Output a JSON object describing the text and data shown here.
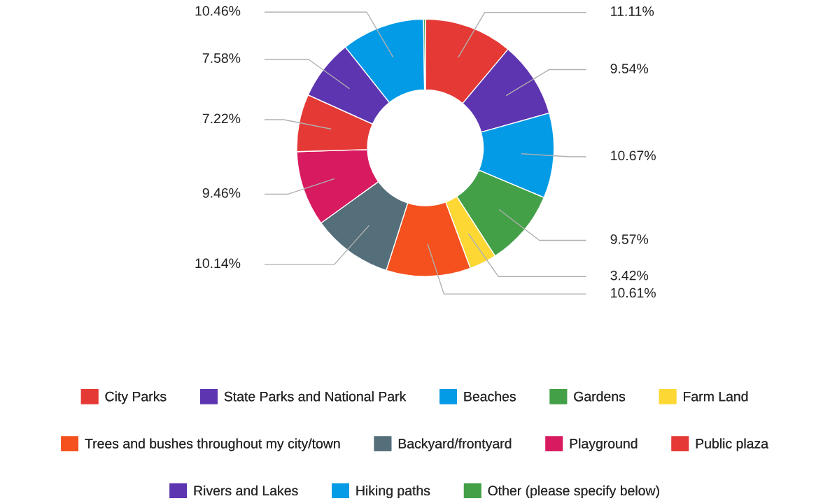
{
  "chart_data": {
    "type": "donut",
    "categories": [
      "City Parks",
      "State Parks and National Park",
      "Beaches",
      "Gardens",
      "Farm Land",
      "Trees and bushes throughout my city/town",
      "Backyard/frontyard",
      "Playground",
      "Public plaza",
      "Rivers and Lakes",
      "Hiking paths",
      "Other (please specify below)"
    ],
    "values": [
      11.11,
      9.54,
      10.67,
      9.57,
      3.42,
      10.61,
      10.14,
      9.46,
      7.22,
      7.58,
      10.46,
      0.22
    ],
    "value_labels": [
      "11.11%",
      "9.54%",
      "10.67%",
      "9.57%",
      "3.42%",
      "10.61%",
      "10.14%",
      "9.46%",
      "7.22%",
      "7.58%",
      "10.46%",
      null
    ],
    "colors": [
      "#e53935",
      "#5e35b1",
      "#039be5",
      "#43a047",
      "#fdd835",
      "#f4511e",
      "#546e7a",
      "#d81b60",
      "#e53935",
      "#5e35b1",
      "#039be5",
      "#43a047"
    ],
    "legend": "bottom"
  }
}
